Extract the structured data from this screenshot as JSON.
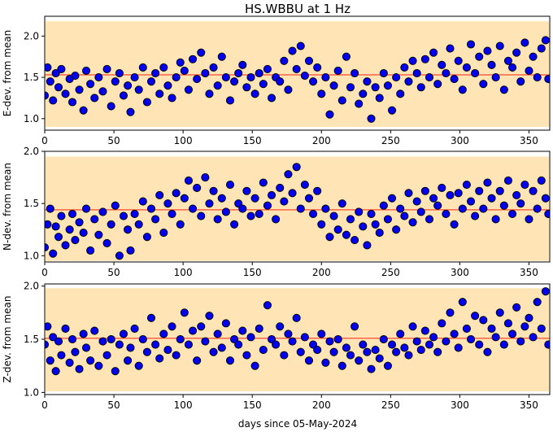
{
  "title": "HS.WBBU at 1 Hz",
  "xlabel": "days since 05-May-2024",
  "colors": {
    "band": "#ffe4b5",
    "mean_line": "#ff6347",
    "marker_fill": "#0000ee",
    "marker_edge": "#000000"
  },
  "chart_data": [
    {
      "type": "scatter",
      "ylabel": "E-dev. from mean",
      "xlim": [
        0,
        365
      ],
      "ylim": [
        0.86,
        2.24
      ],
      "xticks": [
        "0",
        "50",
        "100",
        "150",
        "200",
        "250",
        "300",
        "350"
      ],
      "yticks": [
        "1.0",
        "1.5",
        "2.0"
      ],
      "band": [
        0.9,
        2.18
      ],
      "mean": 1.53,
      "grid": false,
      "series": [
        {
          "x": [
            0,
            2,
            4,
            6,
            8,
            10,
            12,
            15,
            18,
            20,
            22,
            25,
            28,
            30,
            33,
            36,
            39,
            42,
            45,
            48,
            51,
            54,
            57,
            60,
            62,
            65,
            68,
            71,
            74,
            77,
            80,
            83,
            86,
            89,
            92,
            95,
            98,
            101,
            104,
            107,
            110,
            113,
            116,
            119,
            122,
            125,
            128,
            131,
            134,
            137,
            140,
            143,
            146,
            149,
            152,
            155,
            158,
            161,
            164,
            167,
            170,
            173,
            176,
            179,
            182,
            185,
            188,
            191,
            194,
            197,
            200,
            203,
            206,
            209,
            212,
            215,
            218,
            221,
            224,
            227,
            230,
            233,
            236,
            239,
            242,
            245,
            248,
            251,
            254,
            257,
            260,
            263,
            266,
            269,
            272,
            275,
            278,
            281,
            284,
            287,
            290,
            293,
            296,
            299,
            302,
            305,
            308,
            311,
            314,
            317,
            320,
            323,
            326,
            329,
            332,
            335,
            338,
            341,
            344,
            347,
            350,
            353,
            356,
            359,
            362,
            364
          ],
          "y": [
            1.28,
            1.62,
            1.45,
            1.22,
            1.55,
            1.38,
            1.6,
            1.3,
            1.48,
            1.2,
            1.52,
            1.35,
            1.1,
            1.58,
            1.42,
            1.25,
            1.5,
            1.33,
            1.6,
            1.15,
            1.45,
            1.55,
            1.28,
            1.4,
            1.08,
            1.5,
            1.35,
            1.62,
            1.2,
            1.45,
            1.55,
            1.3,
            1.62,
            1.4,
            1.25,
            1.5,
            1.68,
            1.58,
            1.35,
            1.72,
            1.48,
            1.8,
            1.55,
            1.3,
            1.62,
            1.4,
            1.75,
            1.5,
            1.22,
            1.45,
            1.55,
            1.65,
            1.38,
            1.5,
            1.3,
            1.55,
            1.42,
            1.6,
            1.25,
            1.5,
            1.45,
            1.7,
            1.35,
            1.82,
            1.6,
            1.88,
            1.52,
            1.7,
            1.45,
            1.62,
            1.3,
            1.5,
            1.05,
            1.4,
            1.58,
            1.22,
            1.75,
            1.38,
            1.55,
            1.18,
            1.3,
            1.45,
            1.0,
            1.38,
            1.25,
            1.55,
            1.4,
            1.1,
            1.5,
            1.3,
            1.62,
            1.45,
            1.7,
            1.55,
            1.38,
            1.72,
            1.5,
            1.8,
            1.42,
            1.65,
            1.55,
            1.85,
            1.48,
            1.7,
            1.35,
            1.62,
            1.9,
            1.55,
            1.75,
            1.42,
            1.82,
            1.65,
            1.5,
            1.88,
            1.35,
            1.7,
            1.62,
            1.8,
            1.45,
            1.92,
            1.58,
            1.75,
            1.5,
            1.85,
            1.95,
            1.48
          ]
        }
      ]
    },
    {
      "type": "scatter",
      "ylabel": "N-dev. from mean",
      "xlim": [
        0,
        365
      ],
      "ylim": [
        0.94,
        2.0
      ],
      "xticks": [
        "0",
        "50",
        "100",
        "150",
        "200",
        "250",
        "300",
        "350"
      ],
      "yticks": [
        "1.0",
        "1.5",
        "2.0"
      ],
      "band": [
        0.95,
        1.95
      ],
      "mean": 1.44,
      "grid": false,
      "series": [
        {
          "x": [
            0,
            2,
            4,
            6,
            8,
            10,
            12,
            15,
            18,
            20,
            22,
            25,
            28,
            30,
            33,
            36,
            39,
            42,
            45,
            48,
            51,
            54,
            57,
            60,
            62,
            65,
            68,
            71,
            74,
            77,
            80,
            83,
            86,
            89,
            92,
            95,
            98,
            101,
            104,
            107,
            110,
            113,
            116,
            119,
            122,
            125,
            128,
            131,
            134,
            137,
            140,
            143,
            146,
            149,
            152,
            155,
            158,
            161,
            164,
            167,
            170,
            173,
            176,
            179,
            182,
            185,
            188,
            191,
            194,
            197,
            200,
            203,
            206,
            209,
            212,
            215,
            218,
            221,
            224,
            227,
            230,
            233,
            236,
            239,
            242,
            245,
            248,
            251,
            254,
            257,
            260,
            263,
            266,
            269,
            272,
            275,
            278,
            281,
            284,
            287,
            290,
            293,
            296,
            299,
            302,
            305,
            308,
            311,
            314,
            317,
            320,
            323,
            326,
            329,
            332,
            335,
            338,
            341,
            344,
            347,
            350,
            353,
            356,
            359,
            362,
            364
          ],
          "y": [
            1.08,
            1.3,
            1.45,
            1.02,
            1.28,
            1.18,
            1.38,
            1.1,
            1.25,
            1.4,
            1.15,
            1.32,
            1.22,
            1.45,
            1.05,
            1.35,
            1.2,
            1.42,
            1.12,
            1.3,
            1.48,
            1.0,
            1.38,
            1.25,
            1.05,
            1.4,
            1.3,
            1.52,
            1.18,
            1.45,
            1.35,
            1.58,
            1.22,
            1.5,
            1.4,
            1.6,
            1.3,
            1.55,
            1.72,
            1.45,
            1.65,
            1.38,
            1.75,
            1.5,
            1.62,
            1.35,
            1.55,
            1.42,
            1.68,
            1.3,
            1.5,
            1.45,
            1.62,
            1.38,
            1.55,
            1.4,
            1.7,
            1.48,
            1.58,
            1.35,
            1.65,
            1.52,
            1.78,
            1.6,
            1.85,
            1.45,
            1.68,
            1.55,
            1.4,
            1.62,
            1.3,
            1.45,
            1.18,
            1.38,
            1.25,
            1.5,
            1.2,
            1.35,
            1.15,
            1.42,
            1.28,
            1.1,
            1.4,
            1.3,
            1.22,
            1.48,
            1.35,
            1.55,
            1.25,
            1.45,
            1.38,
            1.6,
            1.32,
            1.52,
            1.42,
            1.62,
            1.35,
            1.55,
            1.48,
            1.65,
            1.4,
            1.58,
            1.3,
            1.6,
            1.45,
            1.68,
            1.52,
            1.38,
            1.62,
            1.45,
            1.7,
            1.55,
            1.35,
            1.62,
            1.48,
            1.72,
            1.4,
            1.58,
            1.5,
            1.68,
            1.35,
            1.62,
            1.45,
            1.72,
            1.55,
            1.4
          ]
        }
      ]
    },
    {
      "type": "scatter",
      "ylabel": "Z-dev. from mean",
      "xlim": [
        0,
        365
      ],
      "ylim": [
        0.98,
        2.02
      ],
      "xticks": [
        "0",
        "50",
        "100",
        "150",
        "200",
        "250",
        "300",
        "350"
      ],
      "yticks": [
        "1.0",
        "1.5",
        "2.0"
      ],
      "band": [
        1.01,
        1.98
      ],
      "mean": 1.51,
      "grid": false,
      "series": [
        {
          "x": [
            0,
            2,
            4,
            6,
            8,
            10,
            12,
            15,
            18,
            20,
            22,
            25,
            28,
            30,
            33,
            36,
            39,
            42,
            45,
            48,
            51,
            54,
            57,
            60,
            62,
            65,
            68,
            71,
            74,
            77,
            80,
            83,
            86,
            89,
            92,
            95,
            98,
            101,
            104,
            107,
            110,
            113,
            116,
            119,
            122,
            125,
            128,
            131,
            134,
            137,
            140,
            143,
            146,
            149,
            152,
            155,
            158,
            161,
            164,
            167,
            170,
            173,
            176,
            179,
            182,
            185,
            188,
            191,
            194,
            197,
            200,
            203,
            206,
            209,
            212,
            215,
            218,
            221,
            224,
            227,
            230,
            233,
            236,
            239,
            242,
            245,
            248,
            251,
            254,
            257,
            260,
            263,
            266,
            269,
            272,
            275,
            278,
            281,
            284,
            287,
            290,
            293,
            296,
            299,
            302,
            305,
            308,
            311,
            314,
            317,
            320,
            323,
            326,
            329,
            332,
            335,
            338,
            341,
            344,
            347,
            350,
            353,
            356,
            359,
            362,
            364
          ],
          "y": [
            1.45,
            1.62,
            1.3,
            1.52,
            1.2,
            1.48,
            1.35,
            1.6,
            1.28,
            1.5,
            1.38,
            1.22,
            1.55,
            1.42,
            1.3,
            1.58,
            1.25,
            1.48,
            1.35,
            1.5,
            1.2,
            1.45,
            1.55,
            1.3,
            1.42,
            1.6,
            1.25,
            1.5,
            1.38,
            1.7,
            1.45,
            1.32,
            1.55,
            1.4,
            1.62,
            1.35,
            1.5,
            1.75,
            1.45,
            1.58,
            1.3,
            1.62,
            1.48,
            1.72,
            1.38,
            1.55,
            1.42,
            1.65,
            1.3,
            1.5,
            1.45,
            1.58,
            1.35,
            1.52,
            1.25,
            1.6,
            1.4,
            1.82,
            1.5,
            1.45,
            1.62,
            1.35,
            1.55,
            1.48,
            1.7,
            1.38,
            1.52,
            1.3,
            1.45,
            1.4,
            1.55,
            1.28,
            1.48,
            1.38,
            1.5,
            1.25,
            1.42,
            1.35,
            1.62,
            1.3,
            1.45,
            1.38,
            1.22,
            1.4,
            1.32,
            1.5,
            1.25,
            1.45,
            1.38,
            1.55,
            1.42,
            1.35,
            1.62,
            1.48,
            1.4,
            1.58,
            1.45,
            1.52,
            1.38,
            1.65,
            1.48,
            1.75,
            1.55,
            1.42,
            1.85,
            1.6,
            1.5,
            1.72,
            1.45,
            1.68,
            1.38,
            1.6,
            1.52,
            1.75,
            1.45,
            1.65,
            1.55,
            1.8,
            1.48,
            1.62,
            1.7,
            1.52,
            1.85,
            1.6,
            1.95,
            1.45
          ]
        }
      ]
    }
  ]
}
